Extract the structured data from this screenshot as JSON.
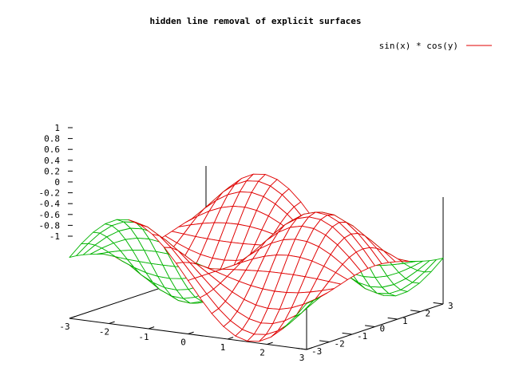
{
  "chart_data": {
    "type": "surface",
    "title": "hidden line removal of explicit surfaces",
    "function": "sin(x) * cos(y)",
    "series": [
      {
        "name": "sin(x) * cos(y)",
        "color": "#e00000",
        "hidden_side_color": "#00b400"
      }
    ],
    "x_range": [
      -3,
      3
    ],
    "y_range": [
      -3,
      3
    ],
    "z_range": [
      -1,
      1
    ],
    "x_ticks": [
      "-3",
      "-2",
      "-1",
      "0",
      "1",
      "2",
      "3"
    ],
    "y_ticks": [
      "-3",
      "-2",
      "-1",
      "0",
      "1",
      "2",
      "3"
    ],
    "z_ticks": [
      "1",
      "0.8",
      "0.6",
      "0.4",
      "0.2",
      "0",
      "-0.2",
      "-0.4",
      "-0.6",
      "-0.8",
      "-1"
    ],
    "isosamples": 20,
    "grid": false,
    "legend": "top-right"
  }
}
